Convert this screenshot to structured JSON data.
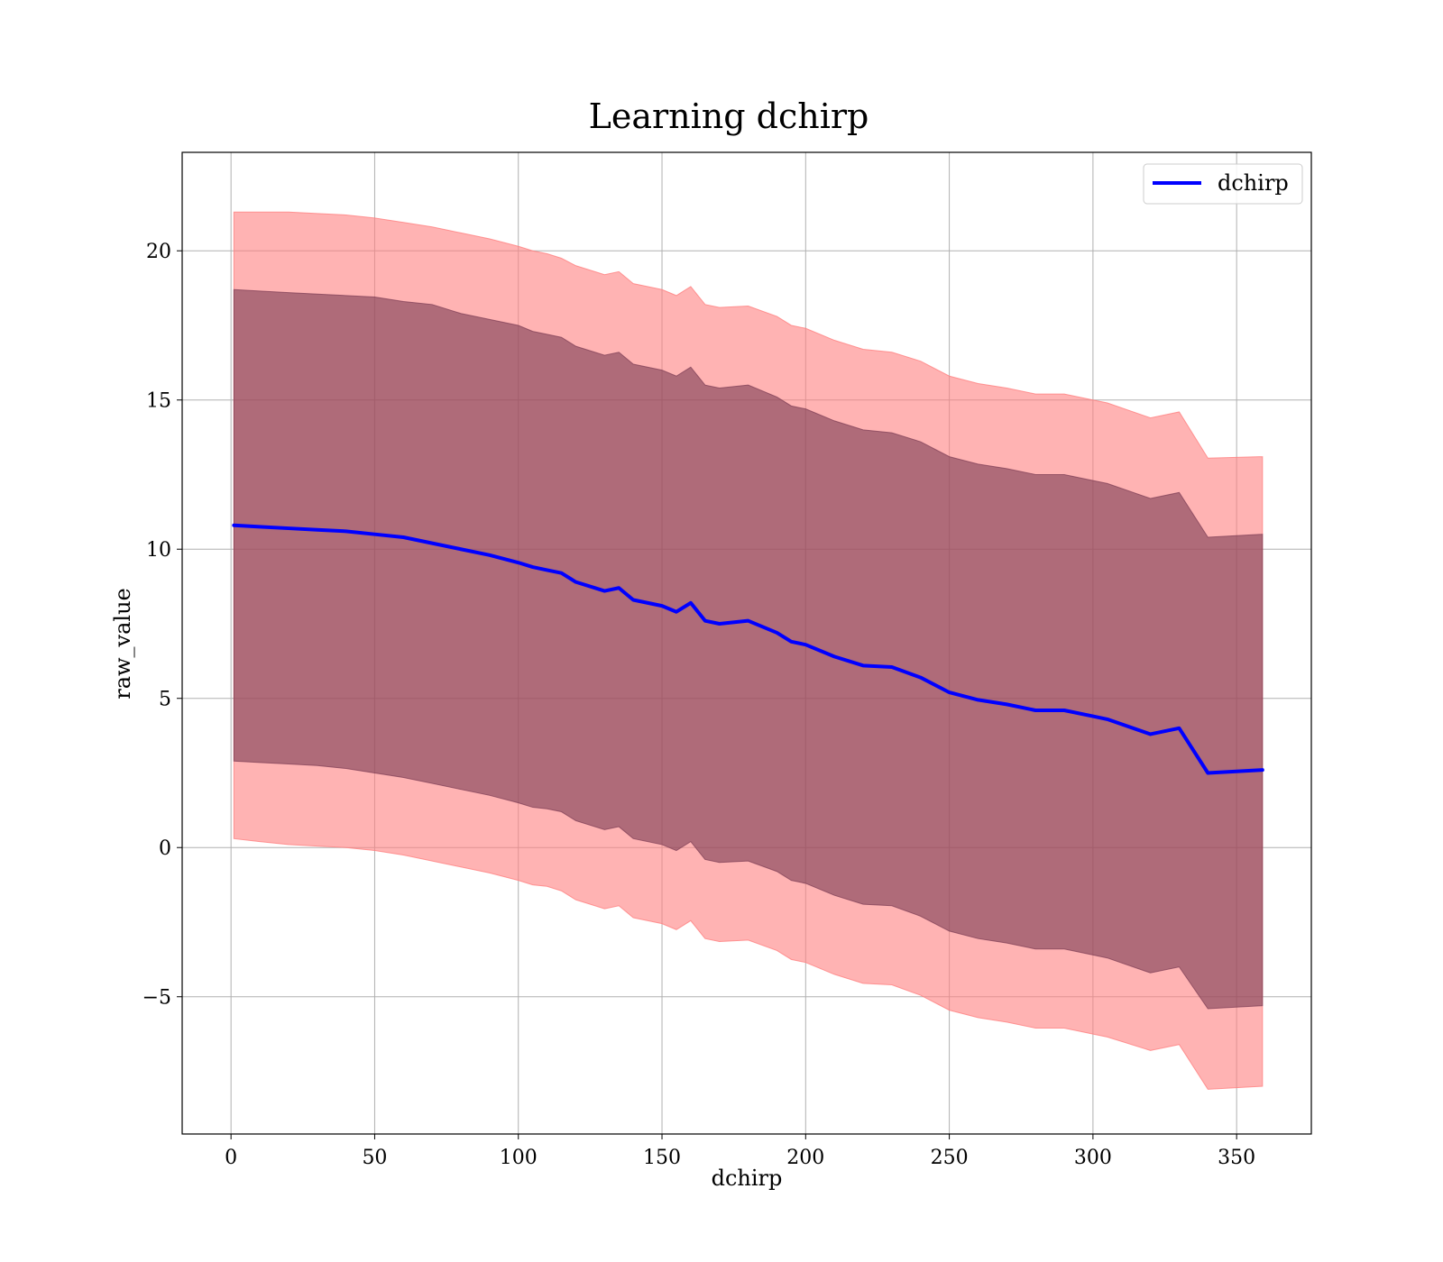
{
  "chart_data": {
    "type": "line",
    "title": "Learning dchirp",
    "xlabel": "dchirp",
    "ylabel": "raw_value",
    "xlim": [
      -17,
      376
    ],
    "ylim": [
      -9.6,
      23.3
    ],
    "x_ticks": [
      0,
      50,
      100,
      150,
      200,
      250,
      300,
      350
    ],
    "y_ticks": [
      -5,
      0,
      5,
      10,
      15,
      20
    ],
    "y_tick_labels": [
      "−5",
      "0",
      "5",
      "10",
      "15",
      "20"
    ],
    "grid": true,
    "legend_position": "top-right",
    "colors": {
      "line": "#0000ff",
      "outer_band": "#ff8080",
      "outer_band_opacity": 0.6,
      "inner_band": "#7a3a52",
      "inner_band_opacity": 0.6
    },
    "series": [
      {
        "name": "dchirp",
        "x": [
          1,
          10,
          20,
          30,
          40,
          50,
          60,
          70,
          80,
          90,
          100,
          105,
          110,
          115,
          120,
          130,
          135,
          140,
          150,
          155,
          160,
          165,
          170,
          180,
          190,
          195,
          200,
          210,
          220,
          230,
          240,
          250,
          260,
          270,
          280,
          290,
          300,
          305,
          320,
          330,
          340,
          359
        ],
        "y": [
          10.8,
          10.75,
          10.7,
          10.65,
          10.6,
          10.5,
          10.4,
          10.2,
          10.0,
          9.8,
          9.55,
          9.4,
          9.3,
          9.2,
          8.9,
          8.6,
          8.7,
          8.3,
          8.1,
          7.9,
          8.2,
          7.6,
          7.5,
          7.6,
          7.2,
          6.9,
          6.8,
          6.4,
          6.1,
          6.05,
          5.7,
          5.2,
          4.95,
          4.8,
          4.6,
          4.6,
          4.4,
          4.3,
          3.8,
          4.0,
          2.5,
          2.6
        ],
        "inner_band": {
          "lower": [
            2.9,
            2.85,
            2.8,
            2.75,
            2.65,
            2.5,
            2.35,
            2.15,
            1.95,
            1.75,
            1.5,
            1.35,
            1.3,
            1.2,
            0.9,
            0.6,
            0.7,
            0.3,
            0.1,
            -0.1,
            0.2,
            -0.4,
            -0.5,
            -0.45,
            -0.8,
            -1.1,
            -1.2,
            -1.6,
            -1.9,
            -1.95,
            -2.3,
            -2.8,
            -3.05,
            -3.2,
            -3.4,
            -3.4,
            -3.6,
            -3.7,
            -4.2,
            -4.0,
            -5.4,
            -5.3
          ],
          "upper": [
            18.7,
            18.65,
            18.6,
            18.55,
            18.5,
            18.45,
            18.3,
            18.2,
            17.9,
            17.7,
            17.5,
            17.3,
            17.2,
            17.1,
            16.8,
            16.5,
            16.6,
            16.2,
            16.0,
            15.8,
            16.1,
            15.5,
            15.4,
            15.5,
            15.1,
            14.8,
            14.7,
            14.3,
            14.0,
            13.9,
            13.6,
            13.1,
            12.85,
            12.7,
            12.5,
            12.5,
            12.3,
            12.2,
            11.7,
            11.9,
            10.4,
            10.5
          ]
        },
        "outer_band": {
          "lower": [
            0.3,
            0.2,
            0.1,
            0.05,
            0.0,
            -0.1,
            -0.25,
            -0.45,
            -0.65,
            -0.85,
            -1.1,
            -1.25,
            -1.3,
            -1.45,
            -1.75,
            -2.05,
            -1.95,
            -2.35,
            -2.55,
            -2.75,
            -2.45,
            -3.05,
            -3.15,
            -3.1,
            -3.45,
            -3.75,
            -3.85,
            -4.25,
            -4.55,
            -4.6,
            -4.95,
            -5.45,
            -5.7,
            -5.85,
            -6.05,
            -6.05,
            -6.25,
            -6.35,
            -6.8,
            -6.6,
            -8.1,
            -8.0
          ],
          "upper": [
            21.3,
            21.3,
            21.3,
            21.25,
            21.2,
            21.1,
            20.95,
            20.8,
            20.6,
            20.4,
            20.15,
            20.0,
            19.9,
            19.75,
            19.5,
            19.2,
            19.3,
            18.9,
            18.7,
            18.5,
            18.8,
            18.2,
            18.1,
            18.15,
            17.8,
            17.5,
            17.4,
            17.0,
            16.7,
            16.6,
            16.3,
            15.8,
            15.55,
            15.4,
            15.2,
            15.2,
            15.0,
            14.9,
            14.4,
            14.6,
            13.05,
            13.1
          ]
        }
      }
    ]
  }
}
